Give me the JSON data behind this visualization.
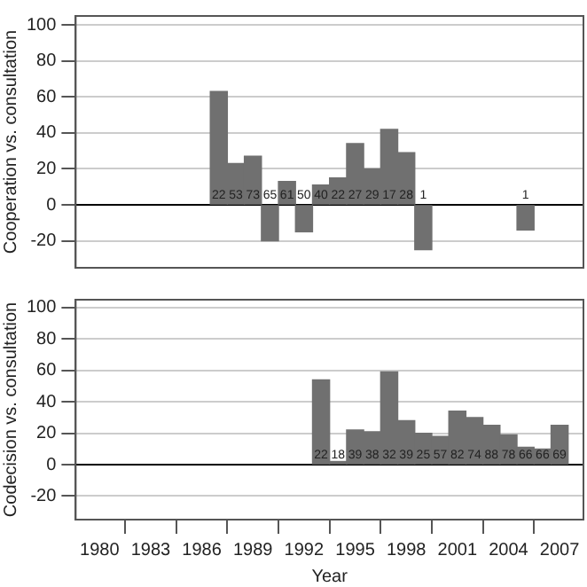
{
  "chart_data": [
    {
      "type": "bar",
      "ylabel": "Cooperation vs. consultation",
      "x": [
        1987,
        1988,
        1989,
        1990,
        1991,
        1992,
        1993,
        1994,
        1995,
        1996,
        1997,
        1998,
        1999,
        2005
      ],
      "values": [
        63,
        23,
        27,
        -20,
        13,
        -15,
        11,
        15,
        34,
        20,
        42,
        29,
        -25,
        -14
      ],
      "annotations": [
        {
          "text": "22",
          "x": 1987,
          "y": 0
        },
        {
          "text": "53",
          "x": 1988,
          "y": 0
        },
        {
          "text": "73",
          "x": 1989,
          "y": 0
        },
        {
          "text": "65",
          "x": 1990,
          "y": 0
        },
        {
          "text": "61",
          "x": 1991,
          "y": 0
        },
        {
          "text": "50",
          "x": 1992,
          "y": 0
        },
        {
          "text": "40",
          "x": 1993,
          "y": 0
        },
        {
          "text": "22",
          "x": 1994,
          "y": 0
        },
        {
          "text": "27",
          "x": 1995,
          "y": 0
        },
        {
          "text": "29",
          "x": 1996,
          "y": 0
        },
        {
          "text": "17",
          "x": 1997,
          "y": 0
        },
        {
          "text": "28",
          "x": 1998,
          "y": 0
        },
        {
          "text": "1",
          "x": 1999,
          "y": 0
        },
        {
          "text": "1",
          "x": 2005,
          "y": 0
        }
      ],
      "color": "#707070",
      "xlim": [
        1978.6,
        2008.4
      ],
      "xticks": [
        1980,
        1983,
        1986,
        1989,
        1992,
        1995,
        1998,
        2001,
        2004,
        2007
      ],
      "ylim": [
        -35,
        105
      ],
      "yticks": [
        -20,
        0,
        20,
        40,
        60,
        80,
        100
      ],
      "grid": "y",
      "tick_labels": "y",
      "ref_lines": [
        {
          "axis": "y",
          "value": 0,
          "color": "#000000"
        }
      ]
    },
    {
      "type": "bar",
      "ylabel": "Codecision vs. consultation",
      "xlabel": "Year",
      "x": [
        1993,
        1994,
        1995,
        1996,
        1997,
        1998,
        1999,
        2000,
        2001,
        2002,
        2003,
        2004,
        2005,
        2006,
        2007
      ],
      "values": [
        54,
        2,
        22,
        21,
        59,
        28,
        20,
        18,
        34,
        30,
        25,
        19,
        11,
        10,
        25
      ],
      "annotations": [
        {
          "text": "22",
          "x": 1993,
          "y": 0
        },
        {
          "text": "18",
          "x": 1994,
          "y": 0
        },
        {
          "text": "39",
          "x": 1995,
          "y": 0
        },
        {
          "text": "38",
          "x": 1996,
          "y": 0
        },
        {
          "text": "32",
          "x": 1997,
          "y": 0
        },
        {
          "text": "39",
          "x": 1998,
          "y": 0
        },
        {
          "text": "25",
          "x": 1999,
          "y": 0
        },
        {
          "text": "57",
          "x": 2000,
          "y": 0
        },
        {
          "text": "82",
          "x": 2001,
          "y": 0
        },
        {
          "text": "74",
          "x": 2002,
          "y": 0
        },
        {
          "text": "88",
          "x": 2003,
          "y": 0
        },
        {
          "text": "78",
          "x": 2004,
          "y": 0
        },
        {
          "text": "66",
          "x": 2005,
          "y": 0
        },
        {
          "text": "66",
          "x": 2006,
          "y": 0
        },
        {
          "text": "69",
          "x": 2007,
          "y": 0
        }
      ],
      "color": "#707070",
      "xlim": [
        1978.6,
        2008.4
      ],
      "xticks": [
        1980,
        1983,
        1986,
        1989,
        1992,
        1995,
        1998,
        2001,
        2004,
        2007
      ],
      "ylim": [
        -35,
        105
      ],
      "yticks": [
        -20,
        0,
        20,
        40,
        60,
        80,
        100
      ],
      "grid": "y",
      "ref_lines": [
        {
          "axis": "y",
          "value": 0,
          "color": "#000000"
        }
      ]
    }
  ]
}
